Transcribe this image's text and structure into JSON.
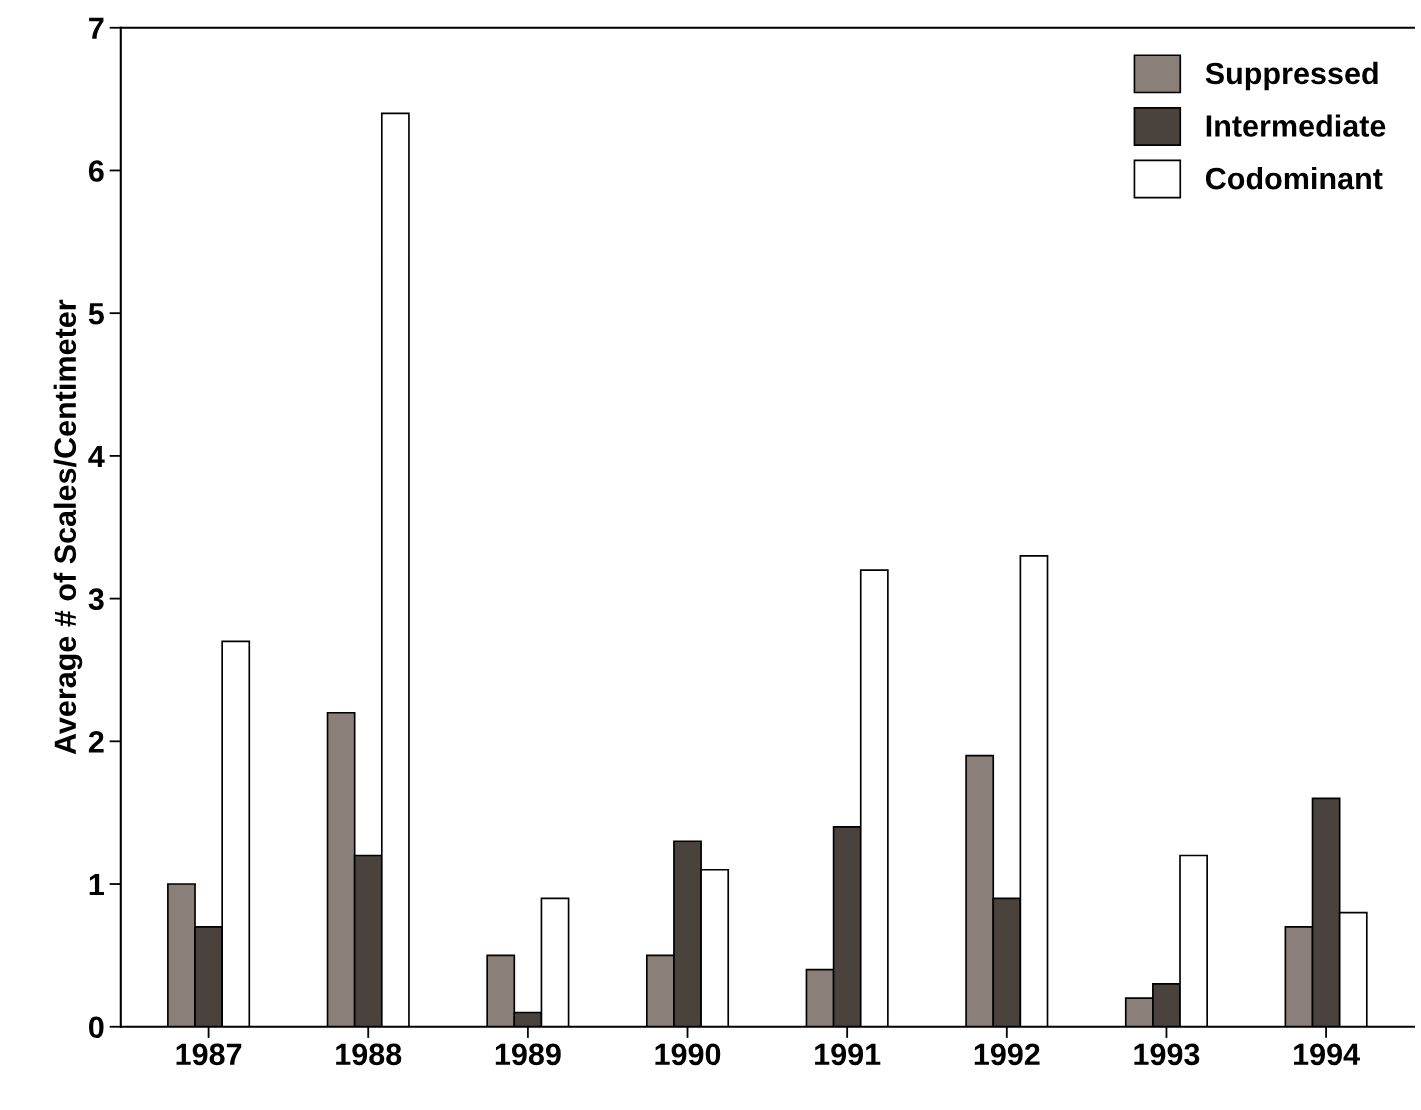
{
  "chart_data": {
    "type": "bar",
    "ylabel": "Average # of Scales/Centimeter",
    "categories": [
      "1987",
      "1988",
      "1989",
      "1990",
      "1991",
      "1992",
      "1993",
      "1994"
    ],
    "series": [
      {
        "name": "Suppressed",
        "color": "#8a8079",
        "values": [
          1.0,
          2.2,
          0.5,
          0.5,
          0.4,
          1.9,
          0.2,
          0.7
        ]
      },
      {
        "name": "Intermediate",
        "color": "#4a423c",
        "values": [
          0.7,
          1.2,
          0.1,
          1.3,
          1.4,
          0.9,
          0.3,
          1.6
        ]
      },
      {
        "name": "Codominant",
        "color": "#ffffff",
        "values": [
          2.7,
          6.4,
          0.9,
          1.1,
          3.2,
          3.3,
          1.2,
          0.8
        ]
      }
    ],
    "ylim": [
      0,
      7
    ],
    "yticks": [
      0,
      1,
      2,
      3,
      4,
      5,
      6,
      7
    ],
    "grid": false,
    "legend": "top right"
  }
}
